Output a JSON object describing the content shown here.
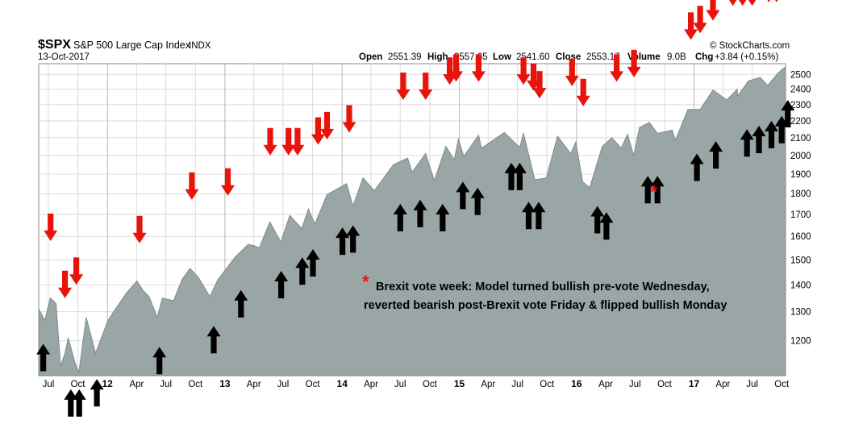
{
  "header": {
    "symbol": "$SPX",
    "name": "S&P 500 Large Cap Index",
    "exchange": "INDX",
    "date": "13-Oct-2017",
    "watermark": "© StockCharts.com",
    "quote": {
      "open_label": "Open",
      "open": "2551.39",
      "high_label": "High",
      "high": "2557.65",
      "low_label": "Low",
      "low": "2541.60",
      "close_label": "Close",
      "close": "2553.17",
      "volume_label": "Volume",
      "volume": "9.0B",
      "chg_label": "Chg",
      "chg": "+3.84 (+0.15%)"
    }
  },
  "colors": {
    "area_fill": "#9aa6a6",
    "area_line": "#7f8b8b",
    "sell_arrow": "#e8140c",
    "buy_arrow": "#000000",
    "grid": "#dcdcdc",
    "year_grid": "#b8b8b8"
  },
  "annotation": {
    "marker": "*",
    "line1": "Brexit vote week: Model turned bullish pre-vote Wednesday,",
    "line2": "reverted bearish post-Brexit vote Friday & flipped bullish Monday"
  },
  "chart_data": {
    "type": "area",
    "title": "$SPX S&P 500 Large Cap Index INDX",
    "y_scale": "log",
    "ylim": [
      1090,
      2575
    ],
    "y_ticks": [
      1200,
      1300,
      1400,
      1500,
      1600,
      1700,
      1800,
      1900,
      2000,
      2100,
      2200,
      2300,
      2400,
      2500
    ],
    "x_range": [
      "2011-06-01",
      "2017-10-13"
    ],
    "x_ticks": [
      {
        "label": "Jul",
        "date": "2011-07-01",
        "year": false
      },
      {
        "label": "Oct",
        "date": "2011-10-01",
        "year": false
      },
      {
        "label": "12",
        "date": "2012-01-01",
        "year": true
      },
      {
        "label": "Apr",
        "date": "2012-04-01",
        "year": false
      },
      {
        "label": "Jul",
        "date": "2012-07-01",
        "year": false
      },
      {
        "label": "Oct",
        "date": "2012-10-01",
        "year": false
      },
      {
        "label": "13",
        "date": "2013-01-01",
        "year": true
      },
      {
        "label": "Apr",
        "date": "2013-04-01",
        "year": false
      },
      {
        "label": "Jul",
        "date": "2013-07-01",
        "year": false
      },
      {
        "label": "Oct",
        "date": "2013-10-01",
        "year": false
      },
      {
        "label": "14",
        "date": "2014-01-01",
        "year": true
      },
      {
        "label": "Apr",
        "date": "2014-04-01",
        "year": false
      },
      {
        "label": "Jul",
        "date": "2014-07-01",
        "year": false
      },
      {
        "label": "Oct",
        "date": "2014-10-01",
        "year": false
      },
      {
        "label": "15",
        "date": "2015-01-01",
        "year": true
      },
      {
        "label": "Apr",
        "date": "2015-04-01",
        "year": false
      },
      {
        "label": "Jul",
        "date": "2015-07-01",
        "year": false
      },
      {
        "label": "Oct",
        "date": "2015-10-01",
        "year": false
      },
      {
        "label": "16",
        "date": "2016-01-01",
        "year": true
      },
      {
        "label": "Apr",
        "date": "2016-04-01",
        "year": false
      },
      {
        "label": "Jul",
        "date": "2016-07-01",
        "year": false
      },
      {
        "label": "Oct",
        "date": "2016-10-01",
        "year": false
      },
      {
        "label": "17",
        "date": "2017-01-01",
        "year": true
      },
      {
        "label": "Apr",
        "date": "2017-04-01",
        "year": false
      },
      {
        "label": "Jul",
        "date": "2017-07-01",
        "year": false
      },
      {
        "label": "Oct",
        "date": "2017-10-01",
        "year": false
      }
    ],
    "series": [
      {
        "points": [
          [
            "2011-06-01",
            1310
          ],
          [
            "2011-06-20",
            1270
          ],
          [
            "2011-07-07",
            1350
          ],
          [
            "2011-07-25",
            1330
          ],
          [
            "2011-08-08",
            1120
          ],
          [
            "2011-08-22",
            1160
          ],
          [
            "2011-09-01",
            1210
          ],
          [
            "2011-09-22",
            1130
          ],
          [
            "2011-10-04",
            1100
          ],
          [
            "2011-10-27",
            1280
          ],
          [
            "2011-11-25",
            1160
          ],
          [
            "2011-12-15",
            1215
          ],
          [
            "2012-01-03",
            1270
          ],
          [
            "2012-02-01",
            1320
          ],
          [
            "2012-03-01",
            1370
          ],
          [
            "2012-04-02",
            1415
          ],
          [
            "2012-04-20",
            1380
          ],
          [
            "2012-05-10",
            1355
          ],
          [
            "2012-06-04",
            1280
          ],
          [
            "2012-06-20",
            1350
          ],
          [
            "2012-07-25",
            1340
          ],
          [
            "2012-08-20",
            1420
          ],
          [
            "2012-09-14",
            1465
          ],
          [
            "2012-10-10",
            1430
          ],
          [
            "2012-11-15",
            1355
          ],
          [
            "2012-12-10",
            1420
          ],
          [
            "2013-01-03",
            1460
          ],
          [
            "2013-02-01",
            1510
          ],
          [
            "2013-03-14",
            1565
          ],
          [
            "2013-04-01",
            1560
          ],
          [
            "2013-04-18",
            1550
          ],
          [
            "2013-05-21",
            1665
          ],
          [
            "2013-06-24",
            1575
          ],
          [
            "2013-07-22",
            1695
          ],
          [
            "2013-08-28",
            1635
          ],
          [
            "2013-09-18",
            1725
          ],
          [
            "2013-10-08",
            1655
          ],
          [
            "2013-11-15",
            1795
          ],
          [
            "2014-01-15",
            1850
          ],
          [
            "2014-02-04",
            1740
          ],
          [
            "2014-03-07",
            1880
          ],
          [
            "2014-04-11",
            1815
          ],
          [
            "2014-06-10",
            1950
          ],
          [
            "2014-07-24",
            1985
          ],
          [
            "2014-08-07",
            1910
          ],
          [
            "2014-09-18",
            2010
          ],
          [
            "2014-10-15",
            1865
          ],
          [
            "2014-11-20",
            2050
          ],
          [
            "2014-12-16",
            1975
          ],
          [
            "2014-12-29",
            2090
          ],
          [
            "2015-01-15",
            1995
          ],
          [
            "2015-03-02",
            2115
          ],
          [
            "2015-03-11",
            2040
          ],
          [
            "2015-05-21",
            2130
          ],
          [
            "2015-07-08",
            2045
          ],
          [
            "2015-07-20",
            2125
          ],
          [
            "2015-08-24",
            1870
          ],
          [
            "2015-09-29",
            1880
          ],
          [
            "2015-11-03",
            2110
          ],
          [
            "2015-12-14",
            2010
          ],
          [
            "2015-12-30",
            2075
          ],
          [
            "2016-01-20",
            1860
          ],
          [
            "2016-02-11",
            1830
          ],
          [
            "2016-03-21",
            2050
          ],
          [
            "2016-04-20",
            2100
          ],
          [
            "2016-05-19",
            2040
          ],
          [
            "2016-06-08",
            2120
          ],
          [
            "2016-06-27",
            2000
          ],
          [
            "2016-07-15",
            2160
          ],
          [
            "2016-08-15",
            2190
          ],
          [
            "2016-09-09",
            2125
          ],
          [
            "2016-10-25",
            2145
          ],
          [
            "2016-11-04",
            2085
          ],
          [
            "2016-12-13",
            2270
          ],
          [
            "2017-01-20",
            2270
          ],
          [
            "2017-03-01",
            2395
          ],
          [
            "2017-04-13",
            2330
          ],
          [
            "2017-05-15",
            2400
          ],
          [
            "2017-05-17",
            2355
          ],
          [
            "2017-06-19",
            2455
          ],
          [
            "2017-07-26",
            2480
          ],
          [
            "2017-08-18",
            2425
          ],
          [
            "2017-09-20",
            2510
          ],
          [
            "2017-10-13",
            2553
          ]
        ]
      }
    ],
    "signals": {
      "sell": [
        [
          "2011-07-08",
          1580
        ],
        [
          "2011-08-22",
          1350
        ],
        [
          "2011-09-26",
          1400
        ],
        [
          "2012-04-10",
          1570
        ],
        [
          "2012-09-20",
          1770
        ],
        [
          "2013-01-10",
          1790
        ],
        [
          "2013-05-22",
          2000
        ],
        [
          "2013-07-18",
          2000
        ],
        [
          "2013-08-15",
          2000
        ],
        [
          "2013-10-18",
          2060
        ],
        [
          "2013-11-15",
          2090
        ],
        [
          "2014-01-23",
          2130
        ],
        [
          "2014-07-10",
          2330
        ],
        [
          "2014-09-18",
          2330
        ],
        [
          "2014-12-02",
          2430
        ],
        [
          "2014-12-22",
          2450
        ],
        [
          "2015-03-02",
          2450
        ],
        [
          "2015-07-20",
          2430
        ],
        [
          "2015-08-20",
          2390
        ],
        [
          "2015-09-08",
          2340
        ],
        [
          "2015-12-18",
          2420
        ],
        [
          "2016-01-22",
          2290
        ],
        [
          "2016-05-05",
          2450
        ],
        [
          "2016-06-28",
          2480
        ],
        [
          "2016-12-22",
          2750
        ],
        [
          "2017-01-20",
          2800
        ],
        [
          "2017-03-01",
          2900
        ],
        [
          "2017-05-02",
          3020
        ],
        [
          "2017-06-01",
          3020
        ],
        [
          "2017-07-01",
          3020
        ],
        [
          "2017-08-22",
          3050
        ],
        [
          "2017-09-15",
          3050
        ]
      ],
      "buy": [
        [
          "2011-06-15",
          1190
        ],
        [
          "2011-09-09",
          1050
        ],
        [
          "2011-10-05",
          1050
        ],
        [
          "2011-11-29",
          1080
        ],
        [
          "2012-06-11",
          1180
        ],
        [
          "2012-11-27",
          1250
        ],
        [
          "2013-02-20",
          1380
        ],
        [
          "2013-06-25",
          1455
        ],
        [
          "2013-08-30",
          1510
        ],
        [
          "2013-10-02",
          1545
        ],
        [
          "2014-01-02",
          1640
        ],
        [
          "2014-02-04",
          1650
        ],
        [
          "2014-07-01",
          1750
        ],
        [
          "2014-09-01",
          1770
        ],
        [
          "2014-11-10",
          1750
        ],
        [
          "2015-01-12",
          1860
        ],
        [
          "2015-02-27",
          1830
        ],
        [
          "2015-06-12",
          1960
        ],
        [
          "2015-07-08",
          1960
        ],
        [
          "2015-08-05",
          1760
        ],
        [
          "2015-09-05",
          1760
        ],
        [
          "2016-03-06",
          1740
        ],
        [
          "2016-04-03",
          1710
        ],
        [
          "2016-08-10",
          1890
        ],
        [
          "2016-09-09",
          1890
        ],
        [
          "2017-01-10",
          2010
        ],
        [
          "2017-03-10",
          2080
        ],
        [
          "2017-06-15",
          2150
        ],
        [
          "2017-07-22",
          2170
        ],
        [
          "2017-08-30",
          2200
        ],
        [
          "2017-10-01",
          2230
        ],
        [
          "2017-10-20",
          2330
        ]
      ],
      "brexit_marker": [
        "2016-09-02",
        1810
      ]
    }
  }
}
